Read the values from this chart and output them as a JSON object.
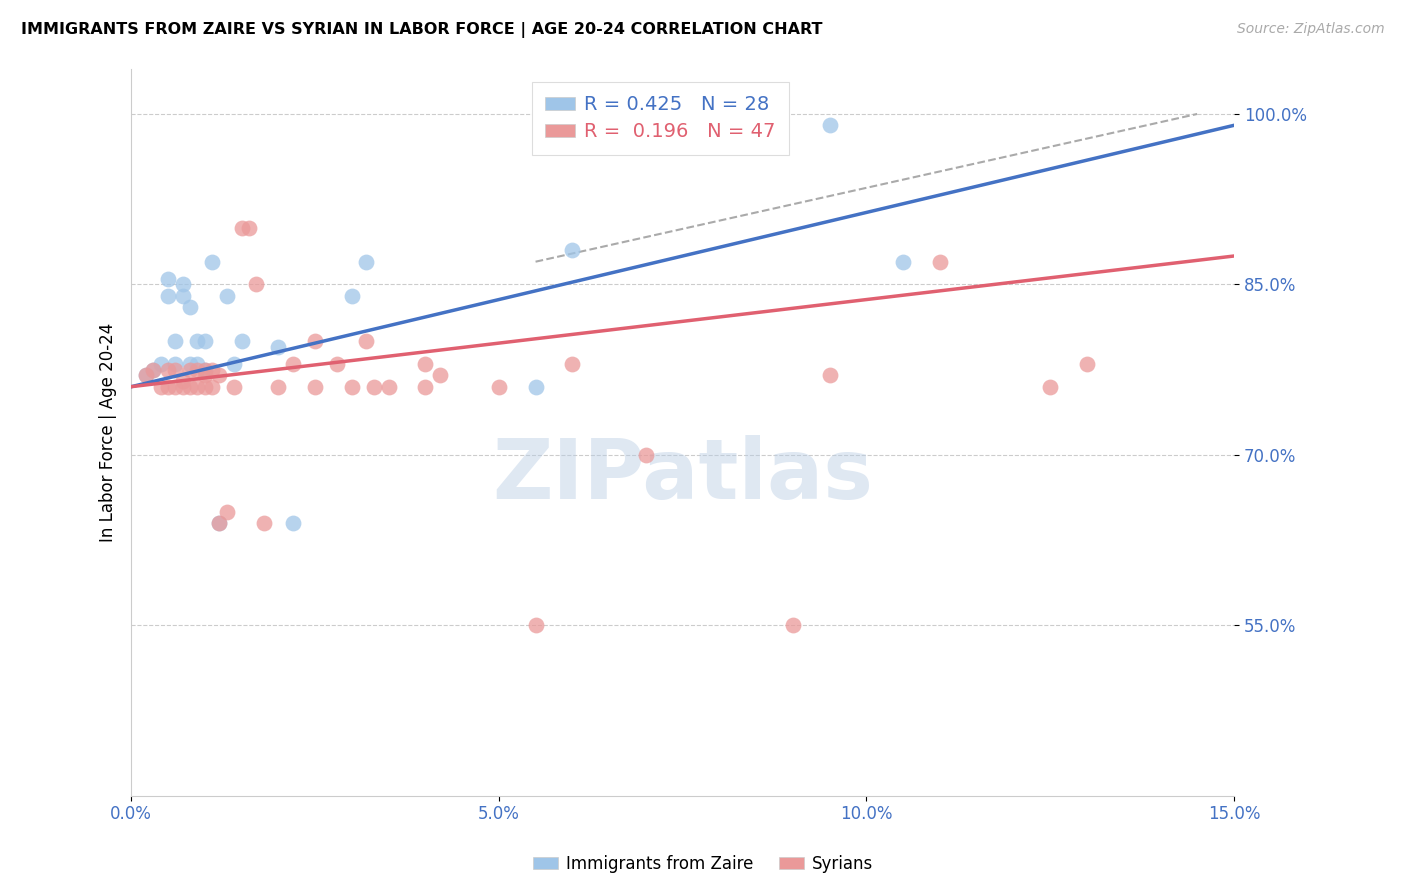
{
  "title": "IMMIGRANTS FROM ZAIRE VS SYRIAN IN LABOR FORCE | AGE 20-24 CORRELATION CHART",
  "source": "Source: ZipAtlas.com",
  "ylabel_label": "In Labor Force | Age 20-24",
  "watermark": "ZIPatlas",
  "legend_zaire": "Immigrants from Zaire",
  "legend_syrian": "Syrians",
  "R_zaire": 0.425,
  "N_zaire": 28,
  "R_syrian": 0.196,
  "N_syrian": 47,
  "x_min": 0.0,
  "x_max": 0.15,
  "y_min": 0.4,
  "y_max": 1.04,
  "yticks": [
    0.55,
    0.7,
    0.85,
    1.0
  ],
  "ytick_labels": [
    "55.0%",
    "70.0%",
    "85.0%",
    "100.0%"
  ],
  "xticks": [
    0.0,
    0.05,
    0.1,
    0.15
  ],
  "xtick_labels": [
    "0.0%",
    "5.0%",
    "10.0%",
    "15.0%"
  ],
  "color_zaire": "#9fc5e8",
  "color_syrian": "#ea9999",
  "color_zaire_line": "#4472c4",
  "color_syrian_line": "#e06070",
  "color_axis_labels": "#4472c4",
  "color_grid": "#cccccc",
  "zaire_x": [
    0.002,
    0.003,
    0.004,
    0.005,
    0.005,
    0.006,
    0.006,
    0.007,
    0.007,
    0.008,
    0.008,
    0.009,
    0.009,
    0.01,
    0.01,
    0.011,
    0.012,
    0.013,
    0.014,
    0.015,
    0.02,
    0.022,
    0.03,
    0.032,
    0.055,
    0.06,
    0.095,
    0.105
  ],
  "zaire_y": [
    0.77,
    0.775,
    0.78,
    0.84,
    0.855,
    0.78,
    0.8,
    0.84,
    0.85,
    0.78,
    0.83,
    0.78,
    0.8,
    0.775,
    0.8,
    0.87,
    0.64,
    0.84,
    0.78,
    0.8,
    0.795,
    0.64,
    0.84,
    0.87,
    0.76,
    0.88,
    0.99,
    0.87
  ],
  "syrian_x": [
    0.002,
    0.003,
    0.004,
    0.005,
    0.005,
    0.006,
    0.006,
    0.007,
    0.007,
    0.008,
    0.008,
    0.009,
    0.009,
    0.01,
    0.01,
    0.01,
    0.011,
    0.011,
    0.012,
    0.012,
    0.013,
    0.014,
    0.015,
    0.016,
    0.017,
    0.018,
    0.02,
    0.022,
    0.025,
    0.025,
    0.028,
    0.03,
    0.032,
    0.033,
    0.035,
    0.04,
    0.04,
    0.042,
    0.05,
    0.055,
    0.06,
    0.07,
    0.09,
    0.095,
    0.11,
    0.125,
    0.13
  ],
  "syrian_y": [
    0.77,
    0.775,
    0.76,
    0.76,
    0.775,
    0.76,
    0.775,
    0.76,
    0.765,
    0.76,
    0.775,
    0.76,
    0.775,
    0.76,
    0.77,
    0.775,
    0.76,
    0.775,
    0.77,
    0.64,
    0.65,
    0.76,
    0.9,
    0.9,
    0.85,
    0.64,
    0.76,
    0.78,
    0.76,
    0.8,
    0.78,
    0.76,
    0.8,
    0.76,
    0.76,
    0.78,
    0.76,
    0.77,
    0.76,
    0.55,
    0.78,
    0.7,
    0.55,
    0.77,
    0.87,
    0.76,
    0.78
  ],
  "zaire_line_x": [
    0.0,
    0.15
  ],
  "zaire_line_y": [
    0.76,
    0.99
  ],
  "syrian_line_x": [
    0.0,
    0.15
  ],
  "syrian_line_y": [
    0.76,
    0.875
  ],
  "dash_line_x": [
    0.055,
    0.145
  ],
  "dash_line_y": [
    0.87,
    1.0
  ]
}
